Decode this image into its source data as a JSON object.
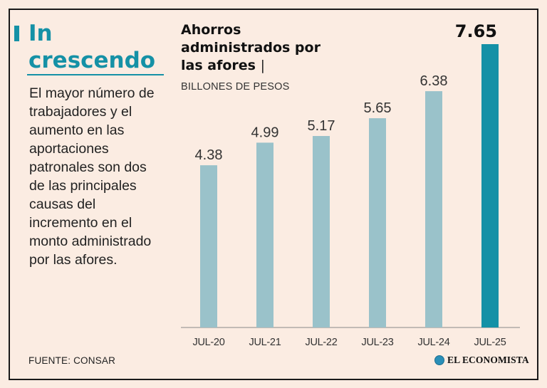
{
  "headline": "In crescendo",
  "description": "El mayor número de trabajadores y el aumento en las aportaciones patronales son dos de las principales causas del incremento en el monto administrado por las afores.",
  "source": "FUENTE: CONSAR",
  "brand": "EL ECONOMISTA",
  "colors": {
    "background": "#fbece2",
    "accent": "#1591a6",
    "bar": "#9ac2ca",
    "bar_highlight": "#1591a6"
  },
  "chart_data": {
    "type": "bar",
    "title": "Ahorros administrados por las afores",
    "title_separator": "|",
    "subtitle": "BILLONES DE PESOS",
    "categories": [
      "JUL-20",
      "JUL-21",
      "JUL-22",
      "JUL-23",
      "JUL-24",
      "JUL-25"
    ],
    "values": [
      4.38,
      4.99,
      5.17,
      5.65,
      6.38,
      7.65
    ],
    "value_labels": [
      "4.38",
      "4.99",
      "5.17",
      "5.65",
      "6.38",
      "7.65"
    ],
    "highlight_index": 5,
    "xlabel": "",
    "ylabel": "",
    "ylim": [
      0,
      7.65
    ],
    "grid": false,
    "legend": "none"
  }
}
